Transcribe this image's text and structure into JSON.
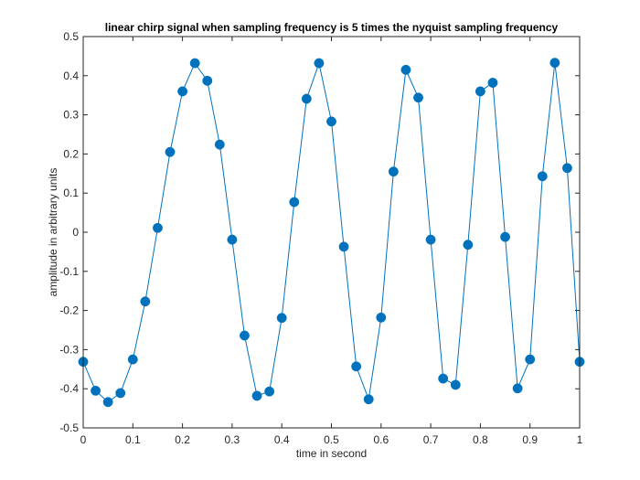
{
  "chart_data": {
    "type": "line",
    "title": "linear chirp signal when sampling frequency is 5 times the nyquist sampling frequency",
    "xlabel": "time in second",
    "ylabel": "amplitude in arbitrary units",
    "xlim": [
      0,
      1
    ],
    "ylim": [
      -0.5,
      0.5
    ],
    "xticks": [
      0,
      0.1,
      0.2,
      0.3,
      0.4,
      0.5,
      0.6,
      0.7,
      0.8,
      0.9,
      1
    ],
    "xtick_labels": [
      "0",
      "0.1",
      "0.2",
      "0.3",
      "0.4",
      "0.5",
      "0.6",
      "0.7",
      "0.8",
      "0.9",
      "1"
    ],
    "yticks": [
      -0.5,
      -0.4,
      -0.3,
      -0.2,
      -0.1,
      0,
      0.1,
      0.2,
      0.3,
      0.4,
      0.5
    ],
    "ytick_labels": [
      "-0.5",
      "-0.4",
      "-0.3",
      "-0.2",
      "-0.1",
      "0",
      "0.1",
      "0.2",
      "0.3",
      "0.4",
      "0.5"
    ],
    "grid": false,
    "series": [
      {
        "color": "#0072BD",
        "marker": "circle",
        "x": [
          0,
          0.025,
          0.05,
          0.075,
          0.1,
          0.125,
          0.15,
          0.175,
          0.2,
          0.225,
          0.25,
          0.275,
          0.3,
          0.325,
          0.35,
          0.375,
          0.4,
          0.425,
          0.45,
          0.475,
          0.5,
          0.525,
          0.55,
          0.575,
          0.6,
          0.625,
          0.65,
          0.675,
          0.7,
          0.725,
          0.75,
          0.775,
          0.8,
          0.825,
          0.85,
          0.875,
          0.9,
          0.925,
          0.95,
          0.975,
          1.0
        ],
        "y": [
          -0.331,
          -0.405,
          -0.434,
          -0.411,
          -0.325,
          -0.177,
          0.011,
          0.205,
          0.36,
          0.432,
          0.387,
          0.224,
          -0.019,
          -0.264,
          -0.418,
          -0.407,
          -0.219,
          0.077,
          0.341,
          0.432,
          0.283,
          -0.037,
          -0.343,
          -0.427,
          -0.218,
          0.155,
          0.415,
          0.344,
          -0.019,
          -0.374,
          -0.39,
          -0.032,
          0.36,
          0.382,
          -0.012,
          -0.399,
          -0.325,
          0.143,
          0.433,
          0.164,
          -0.331
        ]
      }
    ]
  }
}
